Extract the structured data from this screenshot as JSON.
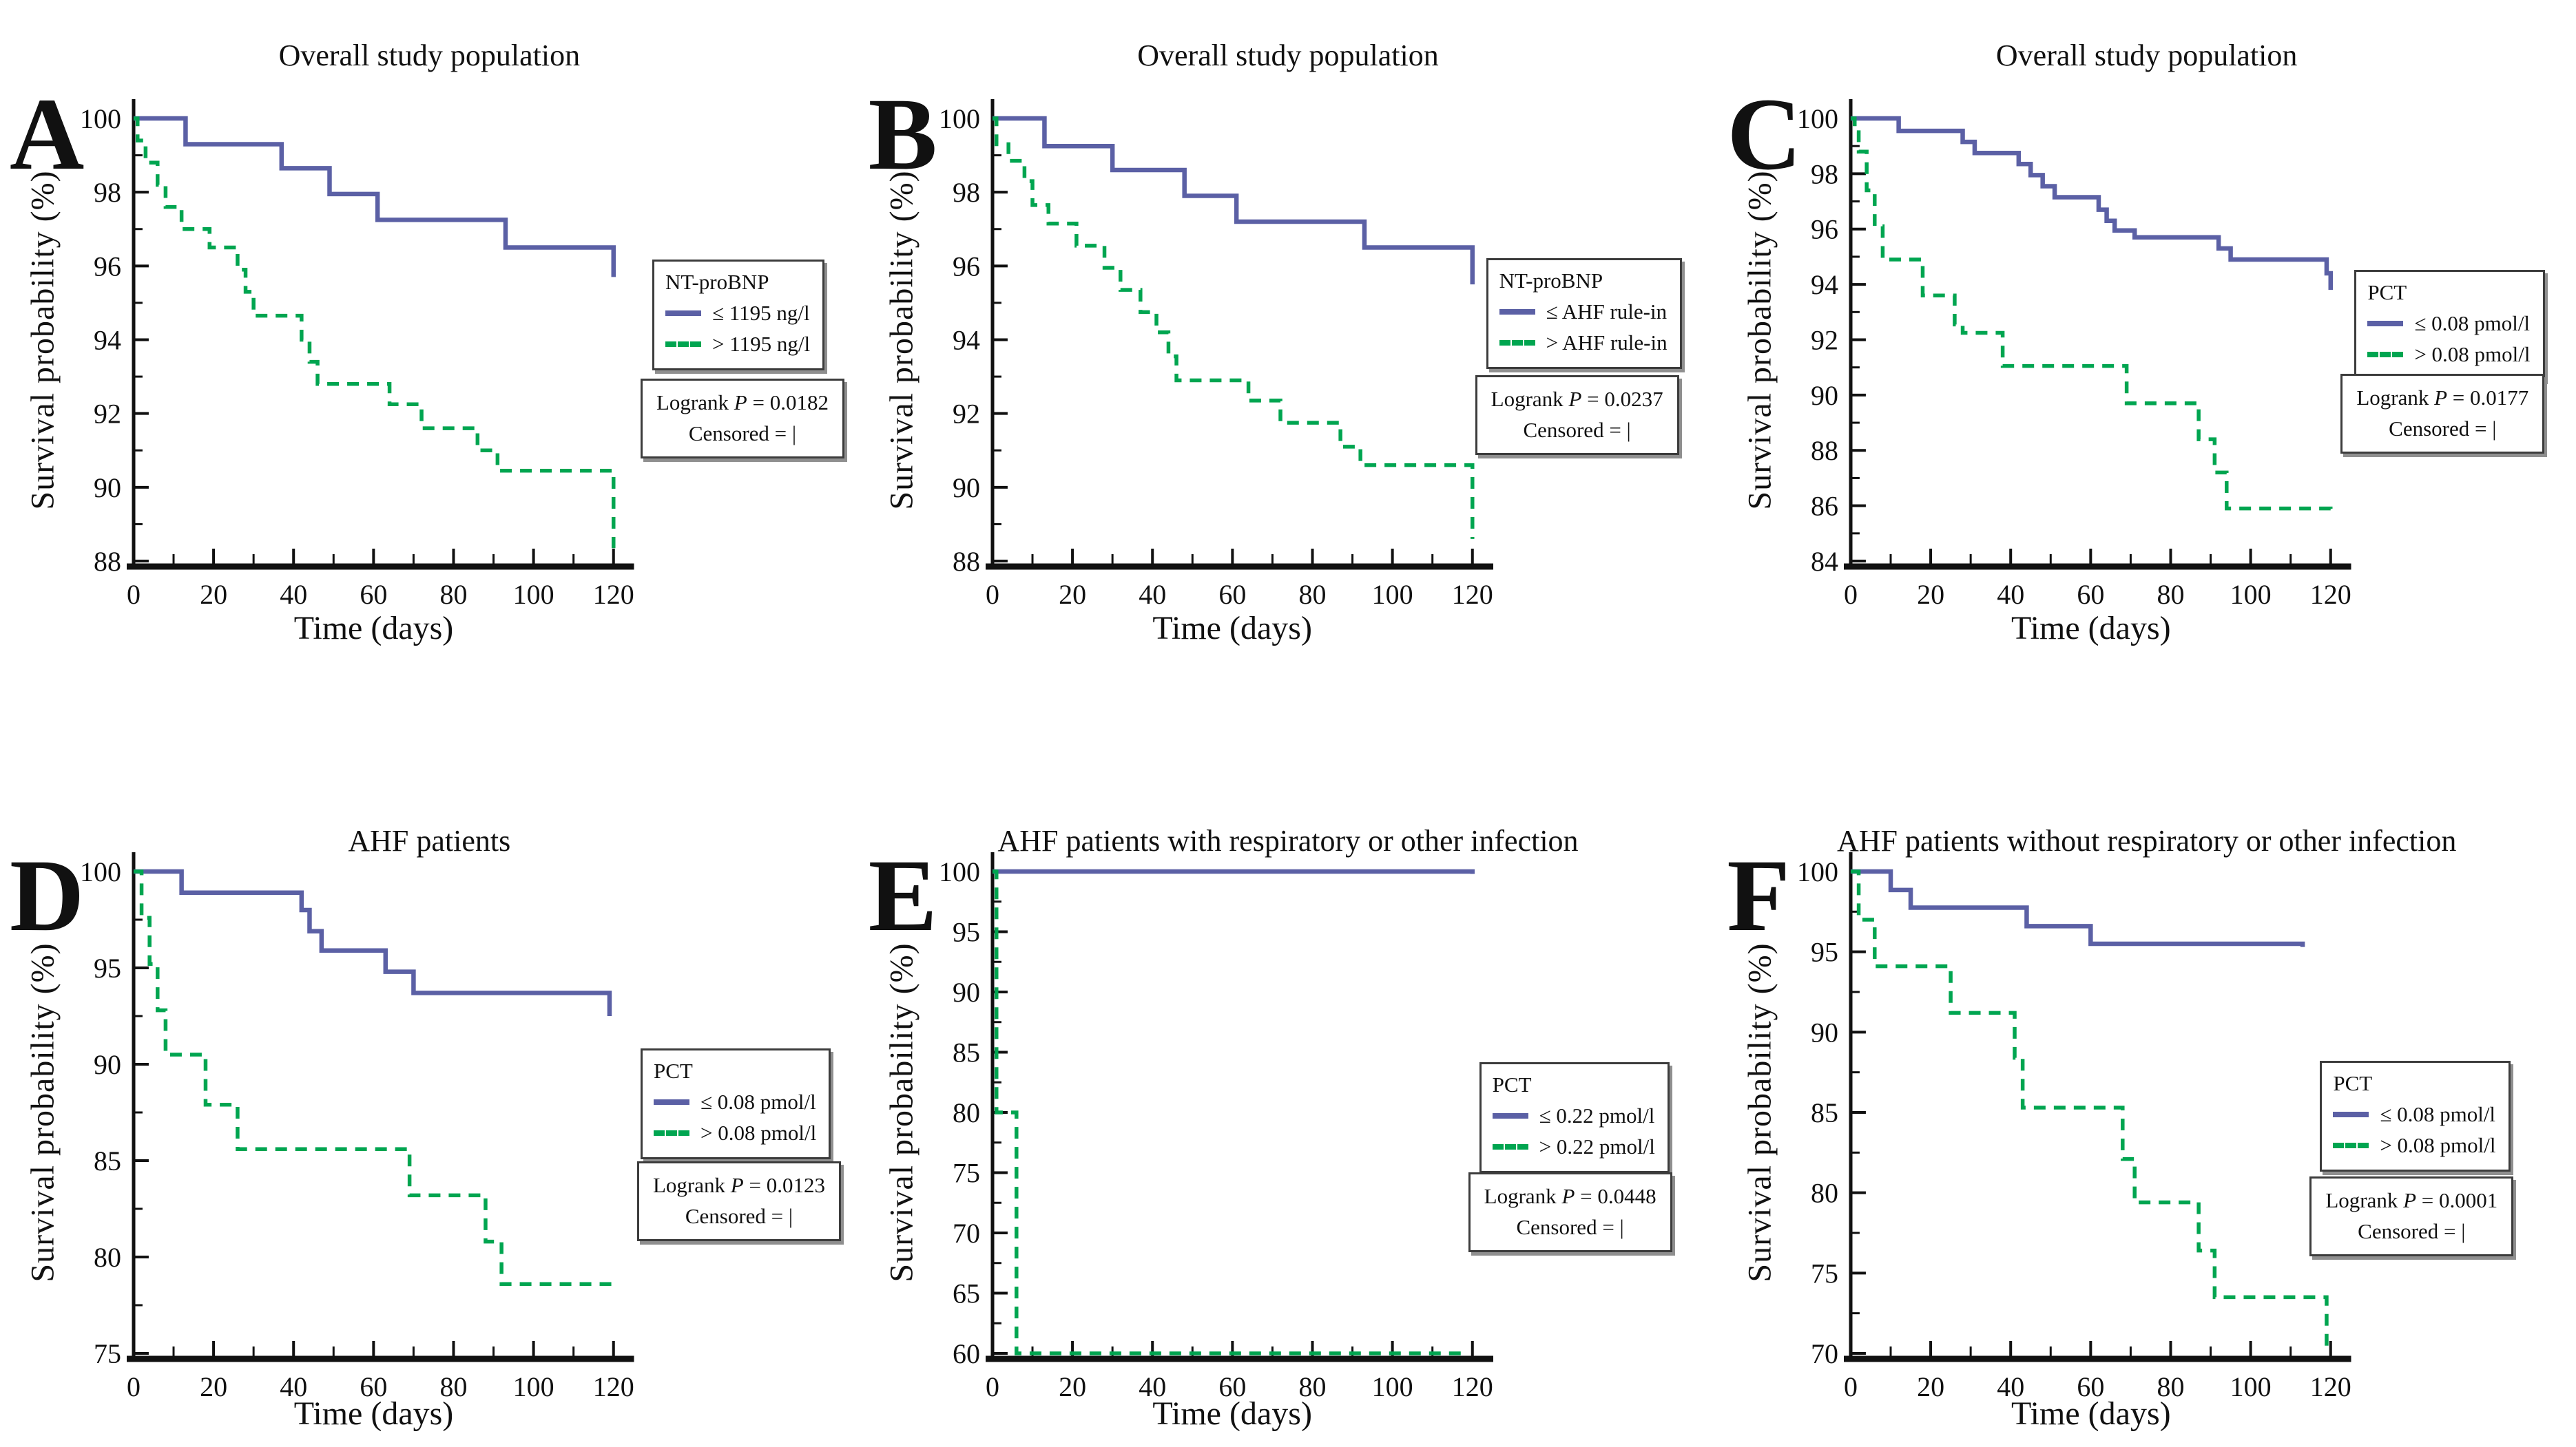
{
  "figure": {
    "background": "#ffffff",
    "accent_blue": "#5b60a5",
    "accent_green": "#00a550",
    "axis_color": "#111111"
  },
  "chart_data": [
    {
      "type": "line",
      "step": true,
      "panel": "A",
      "title": "Overall study population",
      "xlabel": "Time (days)",
      "ylabel": "Survival probability (%)",
      "xlim": [
        0,
        120
      ],
      "ylim": [
        88,
        100
      ],
      "xticks": [
        0,
        20,
        40,
        60,
        80,
        100,
        120
      ],
      "yticks": [
        88,
        90,
        92,
        94,
        96,
        98,
        100
      ],
      "grid": false,
      "legend_position": "right",
      "legend": {
        "header": "NT-proBNP",
        "entries": [
          {
            "label": "≤ 1195 ng/l",
            "style": "solid",
            "color": "#5b60a5"
          },
          {
            "label": "> 1195 ng/l",
            "style": "dashed",
            "color": "#00a550"
          }
        ]
      },
      "stats": {
        "test": "Logrank",
        "symbol": "P",
        "value": "= 0.0182",
        "censored": "Censored = |"
      },
      "series": [
        {
          "name": "≤ 1195 ng/l",
          "color": "#5b60a5",
          "dash": false,
          "points": [
            [
              0,
              100
            ],
            [
              13,
              99.3
            ],
            [
              37,
              98.65
            ],
            [
              49,
              97.95
            ],
            [
              61,
              97.25
            ],
            [
              93,
              96.5
            ],
            [
              120,
              95.7
            ]
          ]
        },
        {
          "name": "> 1195 ng/l",
          "color": "#00a550",
          "dash": true,
          "points": [
            [
              0,
              100
            ],
            [
              1,
              99.4
            ],
            [
              3,
              98.8
            ],
            [
              6,
              98.2
            ],
            [
              8,
              97.6
            ],
            [
              12,
              97.0
            ],
            [
              19,
              96.5
            ],
            [
              26,
              95.9
            ],
            [
              28,
              95.3
            ],
            [
              30,
              94.65
            ],
            [
              42,
              94.0
            ],
            [
              44,
              93.4
            ],
            [
              46,
              92.8
            ],
            [
              64,
              92.25
            ],
            [
              72,
              91.6
            ],
            [
              86,
              91.0
            ],
            [
              91,
              90.45
            ],
            [
              120,
              88.35
            ]
          ]
        }
      ]
    },
    {
      "type": "line",
      "step": true,
      "panel": "B",
      "title": "Overall study population",
      "xlabel": "Time (days)",
      "ylabel": "Survival probability (%)",
      "xlim": [
        0,
        120
      ],
      "ylim": [
        88,
        100
      ],
      "xticks": [
        0,
        20,
        40,
        60,
        80,
        100,
        120
      ],
      "yticks": [
        88,
        90,
        92,
        94,
        96,
        98,
        100
      ],
      "grid": false,
      "legend_position": "right",
      "legend": {
        "header": "NT-proBNP",
        "entries": [
          {
            "label": "≤ AHF rule-in",
            "style": "solid",
            "color": "#5b60a5"
          },
          {
            "label": "> AHF rule-in",
            "style": "dashed",
            "color": "#00a550"
          }
        ]
      },
      "stats": {
        "test": "Logrank",
        "symbol": "P",
        "value": "= 0.0237",
        "censored": "Censored = |"
      },
      "series": [
        {
          "name": "≤ AHF rule-in",
          "color": "#5b60a5",
          "dash": false,
          "points": [
            [
              0,
              100
            ],
            [
              13,
              99.25
            ],
            [
              30,
              98.6
            ],
            [
              48,
              97.9
            ],
            [
              61,
              97.2
            ],
            [
              93,
              96.5
            ],
            [
              120,
              95.5
            ]
          ]
        },
        {
          "name": "> AHF rule-in",
          "color": "#00a550",
          "dash": true,
          "points": [
            [
              0,
              100
            ],
            [
              1,
              99.3
            ],
            [
              4,
              98.85
            ],
            [
              8,
              98.3
            ],
            [
              10,
              97.65
            ],
            [
              14,
              97.15
            ],
            [
              21,
              96.55
            ],
            [
              28,
              95.95
            ],
            [
              32,
              95.35
            ],
            [
              37,
              94.75
            ],
            [
              41,
              94.2
            ],
            [
              44,
              93.55
            ],
            [
              46,
              92.9
            ],
            [
              64,
              92.35
            ],
            [
              72,
              91.75
            ],
            [
              87,
              91.1
            ],
            [
              92,
              90.6
            ],
            [
              120,
              88.6
            ]
          ]
        }
      ]
    },
    {
      "type": "line",
      "step": true,
      "panel": "C",
      "title": "Overall study population",
      "xlabel": "Time (days)",
      "ylabel": "Survival probability (%)",
      "xlim": [
        0,
        120
      ],
      "ylim": [
        84,
        100
      ],
      "xticks": [
        0,
        20,
        40,
        60,
        80,
        100,
        120
      ],
      "yticks": [
        84,
        86,
        88,
        90,
        92,
        94,
        96,
        98,
        100
      ],
      "grid": false,
      "legend_position": "right",
      "legend": {
        "header": "PCT",
        "entries": [
          {
            "label": "≤ 0.08 pmol/l",
            "style": "solid",
            "color": "#5b60a5"
          },
          {
            "label": "> 0.08 pmol/l",
            "style": "dashed",
            "color": "#00a550"
          }
        ]
      },
      "stats": {
        "test": "Logrank",
        "symbol": "P",
        "value": "= 0.0177",
        "censored": "Censored = |"
      },
      "series": [
        {
          "name": "≤ 0.08 pmol/l",
          "color": "#5b60a5",
          "dash": false,
          "points": [
            [
              0,
              100
            ],
            [
              12,
              99.55
            ],
            [
              28,
              99.15
            ],
            [
              31,
              98.75
            ],
            [
              42,
              98.35
            ],
            [
              45,
              97.95
            ],
            [
              48,
              97.55
            ],
            [
              51,
              97.15
            ],
            [
              62,
              96.7
            ],
            [
              64,
              96.3
            ],
            [
              66,
              95.95
            ],
            [
              71,
              95.7
            ],
            [
              92,
              95.3
            ],
            [
              95,
              94.9
            ],
            [
              119,
              94.4
            ],
            [
              120,
              93.8
            ]
          ]
        },
        {
          "name": "> 0.08 pmol/l",
          "color": "#00a550",
          "dash": true,
          "points": [
            [
              0,
              100
            ],
            [
              1,
              99.5
            ],
            [
              2,
              98.8
            ],
            [
              4,
              97.4
            ],
            [
              6,
              96.1
            ],
            [
              8,
              94.9
            ],
            [
              18,
              93.6
            ],
            [
              26,
              92.55
            ],
            [
              28,
              92.25
            ],
            [
              38,
              91.05
            ],
            [
              69,
              89.7
            ],
            [
              87,
              88.4
            ],
            [
              91,
              87.2
            ],
            [
              94,
              85.9
            ],
            [
              120,
              85.6
            ]
          ]
        }
      ]
    },
    {
      "type": "line",
      "step": true,
      "panel": "D",
      "title": "AHF patients",
      "xlabel": "Time (days)",
      "ylabel": "Survival probability (%)",
      "xlim": [
        0,
        120
      ],
      "ylim": [
        75,
        100
      ],
      "xticks": [
        0,
        20,
        40,
        60,
        80,
        100,
        120
      ],
      "yticks": [
        75,
        80,
        85,
        90,
        95,
        100
      ],
      "grid": false,
      "legend_position": "right",
      "legend": {
        "header": "PCT",
        "entries": [
          {
            "label": "≤ 0.08 pmol/l",
            "style": "solid",
            "color": "#5b60a5"
          },
          {
            "label": "> 0.08 pmol/l",
            "style": "dashed",
            "color": "#00a550"
          }
        ]
      },
      "stats": {
        "test": "Logrank",
        "symbol": "P",
        "value": "= 0.0123",
        "censored": "Censored = |"
      },
      "series": [
        {
          "name": "≤ 0.08 pmol/l",
          "color": "#5b60a5",
          "dash": false,
          "points": [
            [
              0,
              100
            ],
            [
              12,
              98.9
            ],
            [
              42,
              98.0
            ],
            [
              44,
              96.9
            ],
            [
              47,
              95.9
            ],
            [
              63,
              94.8
            ],
            [
              70,
              93.7
            ],
            [
              119,
              92.5
            ]
          ]
        },
        {
          "name": "> 0.08 pmol/l",
          "color": "#00a550",
          "dash": true,
          "points": [
            [
              0,
              100
            ],
            [
              2,
              97.6
            ],
            [
              4,
              95.2
            ],
            [
              6,
              92.8
            ],
            [
              8,
              90.5
            ],
            [
              18,
              87.9
            ],
            [
              26,
              85.6
            ],
            [
              69,
              83.2
            ],
            [
              88,
              80.8
            ],
            [
              92,
              78.6
            ],
            [
              120,
              78.4
            ]
          ]
        }
      ]
    },
    {
      "type": "line",
      "step": true,
      "panel": "E",
      "title": "AHF patients with respiratory or other infection",
      "xlabel": "Time (days)",
      "ylabel": "Survival probability (%)",
      "xlim": [
        0,
        120
      ],
      "ylim": [
        60,
        100
      ],
      "xticks": [
        0,
        20,
        40,
        60,
        80,
        100,
        120
      ],
      "yticks": [
        60,
        65,
        70,
        75,
        80,
        85,
        90,
        95,
        100
      ],
      "grid": false,
      "legend_position": "right",
      "legend": {
        "header": "PCT",
        "entries": [
          {
            "label": "≤ 0.22 pmol/l",
            "style": "solid",
            "color": "#5b60a5"
          },
          {
            "label": "> 0.22 pmol/l",
            "style": "dashed",
            "color": "#00a550"
          }
        ]
      },
      "stats": {
        "test": "Logrank",
        "symbol": "P",
        "value": "= 0.0448",
        "censored": "Censored = |"
      },
      "series": [
        {
          "name": "≤ 0.22 pmol/l",
          "color": "#5b60a5",
          "dash": false,
          "points": [
            [
              0,
              100
            ],
            [
              120,
              99.8
            ]
          ]
        },
        {
          "name": "> 0.22 pmol/l",
          "color": "#00a550",
          "dash": true,
          "points": [
            [
              0,
              100
            ],
            [
              1,
              80
            ],
            [
              6,
              60
            ],
            [
              118,
              60
            ]
          ]
        }
      ]
    },
    {
      "type": "line",
      "step": true,
      "panel": "F",
      "title": "AHF patients without respiratory or other infection",
      "xlabel": "Time (days)",
      "ylabel": "Survival probability (%)",
      "xlim": [
        0,
        120
      ],
      "ylim": [
        70,
        100
      ],
      "xticks": [
        0,
        20,
        40,
        60,
        80,
        100,
        120
      ],
      "yticks": [
        70,
        75,
        80,
        85,
        90,
        95,
        100
      ],
      "grid": false,
      "legend_position": "right",
      "legend": {
        "header": "PCT",
        "entries": [
          {
            "label": "≤ 0.08 pmol/l",
            "style": "solid",
            "color": "#5b60a5"
          },
          {
            "label": "> 0.08 pmol/l",
            "style": "dashed",
            "color": "#00a550"
          }
        ]
      },
      "stats": {
        "test": "Logrank",
        "symbol": "P",
        "value": "= 0.0001",
        "censored": "Censored = |"
      },
      "series": [
        {
          "name": "≤ 0.08 pmol/l",
          "color": "#5b60a5",
          "dash": false,
          "points": [
            [
              0,
              100
            ],
            [
              10,
              98.85
            ],
            [
              15,
              97.75
            ],
            [
              44,
              96.6
            ],
            [
              60,
              95.5
            ],
            [
              113,
              95.3
            ]
          ]
        },
        {
          "name": "> 0.08 pmol/l",
          "color": "#00a550",
          "dash": true,
          "points": [
            [
              0,
              100
            ],
            [
              2,
              97.0
            ],
            [
              6,
              94.1
            ],
            [
              25,
              91.2
            ],
            [
              41,
              88.4
            ],
            [
              43,
              85.3
            ],
            [
              68,
              82.1
            ],
            [
              71,
              79.4
            ],
            [
              87,
              76.4
            ],
            [
              91,
              73.5
            ],
            [
              119,
              70.4
            ]
          ]
        }
      ]
    }
  ]
}
